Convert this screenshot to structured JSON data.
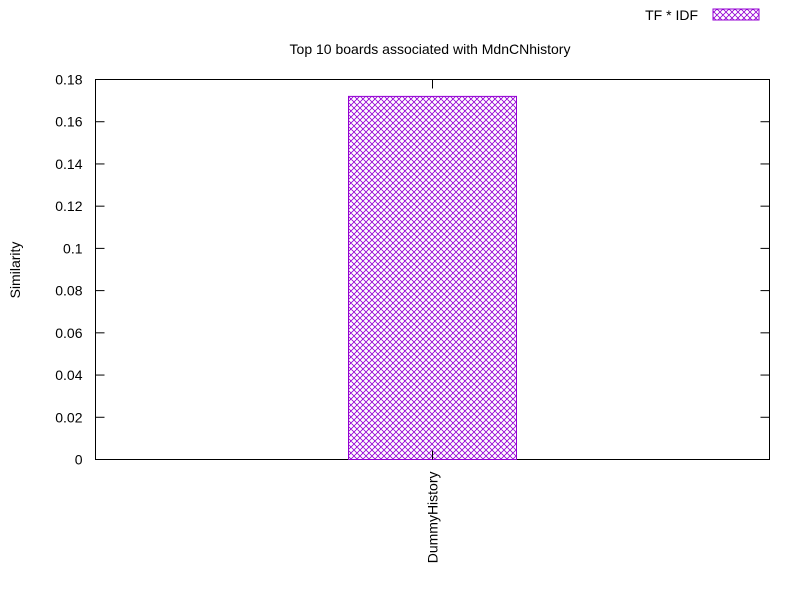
{
  "chart_data": {
    "type": "bar",
    "title": "Top 10 boards associated with MdnCNhistory",
    "xlabel": "",
    "ylabel": "Similarity",
    "categories": [
      "DummyHistory"
    ],
    "series": [
      {
        "name": "TF * IDF",
        "values": [
          0.172
        ],
        "color": "#9400d3"
      }
    ],
    "ylim": [
      0,
      0.18
    ],
    "yticks": [
      0,
      0.02,
      0.04,
      0.06,
      0.08,
      0.1,
      0.12,
      0.14,
      0.16,
      0.18
    ],
    "ytick_labels": [
      "0",
      "0.02",
      "0.04",
      "0.06",
      "0.08",
      "0.1",
      "0.12",
      "0.14",
      "0.16",
      "0.18"
    ],
    "grid": false,
    "legend_position": "top-right",
    "bar_pattern": "crosshatch"
  }
}
